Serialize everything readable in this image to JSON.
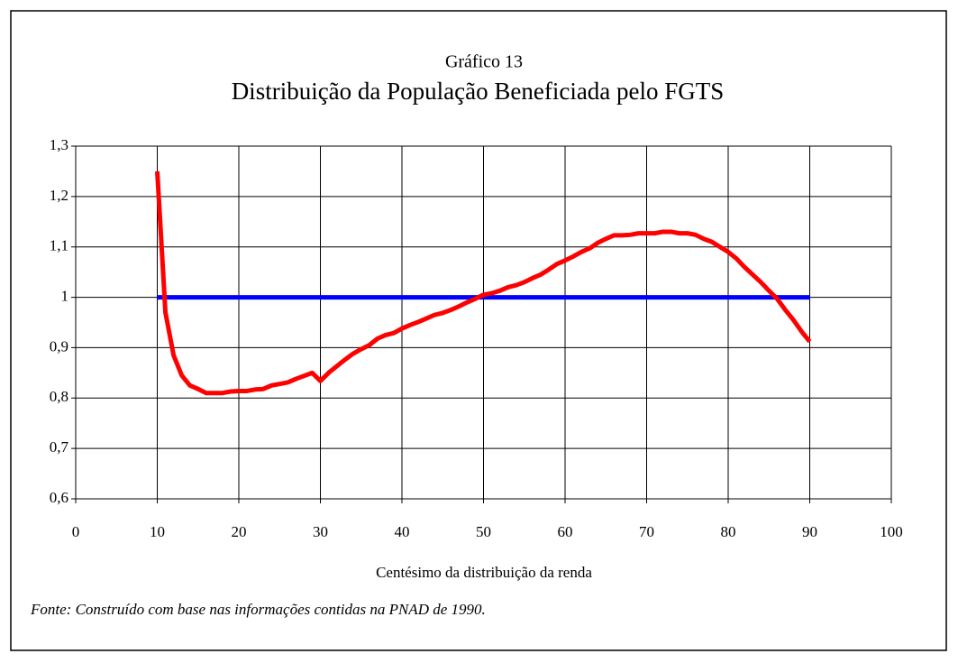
{
  "chart_data": {
    "type": "line",
    "title": "Gráfico 13",
    "subtitle": "Distribuição da População Beneficiada pelo FGTS",
    "x_label": "Centésimo da distribuição da renda",
    "source": "Fonte: Construído com base nas informações contidas na PNAD de 1990.",
    "xlim": [
      0,
      100
    ],
    "xticks": [
      0,
      10,
      20,
      30,
      40,
      50,
      60,
      70,
      80,
      90,
      100
    ],
    "ylim": [
      0.6,
      1.3
    ],
    "yticks": [
      {
        "value": 0.6,
        "label": "0,6"
      },
      {
        "value": 0.7,
        "label": "0,7"
      },
      {
        "value": 0.8,
        "label": "0,8"
      },
      {
        "value": 0.9,
        "label": "0,9"
      },
      1,
      {
        "value": 1.1,
        "label": "1,1"
      },
      {
        "value": 1.2,
        "label": "1,2"
      },
      {
        "value": 1.3,
        "label": "1,3"
      }
    ],
    "grid": true,
    "series": [
      {
        "color": "#0000ff",
        "x": [
          10,
          90
        ],
        "values": [
          1,
          1
        ]
      },
      {
        "color": "#ff0000",
        "x": [
          10,
          11,
          12,
          13,
          14,
          15,
          16,
          17,
          18,
          19,
          20,
          21,
          22,
          23,
          24,
          25,
          26,
          27,
          28,
          29,
          30,
          31,
          32,
          33,
          34,
          35,
          36,
          37,
          38,
          39,
          40,
          41,
          42,
          43,
          44,
          45,
          46,
          47,
          48,
          49,
          50,
          51,
          52,
          53,
          54,
          55,
          56,
          57,
          58,
          59,
          60,
          61,
          62,
          63,
          64,
          65,
          66,
          67,
          68,
          69,
          70,
          71,
          72,
          73,
          74,
          75,
          76,
          77,
          78,
          79,
          80,
          81,
          82,
          83,
          84,
          85,
          86,
          87,
          88,
          89,
          90
        ],
        "values": [
          1.25,
          0.97,
          0.885,
          0.845,
          0.825,
          0.818,
          0.81,
          0.81,
          0.81,
          0.813,
          0.814,
          0.814,
          0.817,
          0.818,
          0.825,
          0.828,
          0.831,
          0.838,
          0.844,
          0.85,
          0.834,
          0.85,
          0.863,
          0.876,
          0.888,
          0.897,
          0.905,
          0.918,
          0.925,
          0.929,
          0.938,
          0.945,
          0.951,
          0.958,
          0.965,
          0.969,
          0.975,
          0.982,
          0.99,
          0.997,
          1.005,
          1.008,
          1.013,
          1.02,
          1.024,
          1.03,
          1.038,
          1.045,
          1.055,
          1.066,
          1.073,
          1.081,
          1.09,
          1.097,
          1.108,
          1.116,
          1.123,
          1.123,
          1.124,
          1.127,
          1.127,
          1.127,
          1.13,
          1.13,
          1.127,
          1.127,
          1.124,
          1.116,
          1.11,
          1.1,
          1.09,
          1.077,
          1.06,
          1.045,
          1.03,
          1.013,
          0.997,
          0.975,
          0.955,
          0.932,
          0.912
        ]
      }
    ]
  }
}
